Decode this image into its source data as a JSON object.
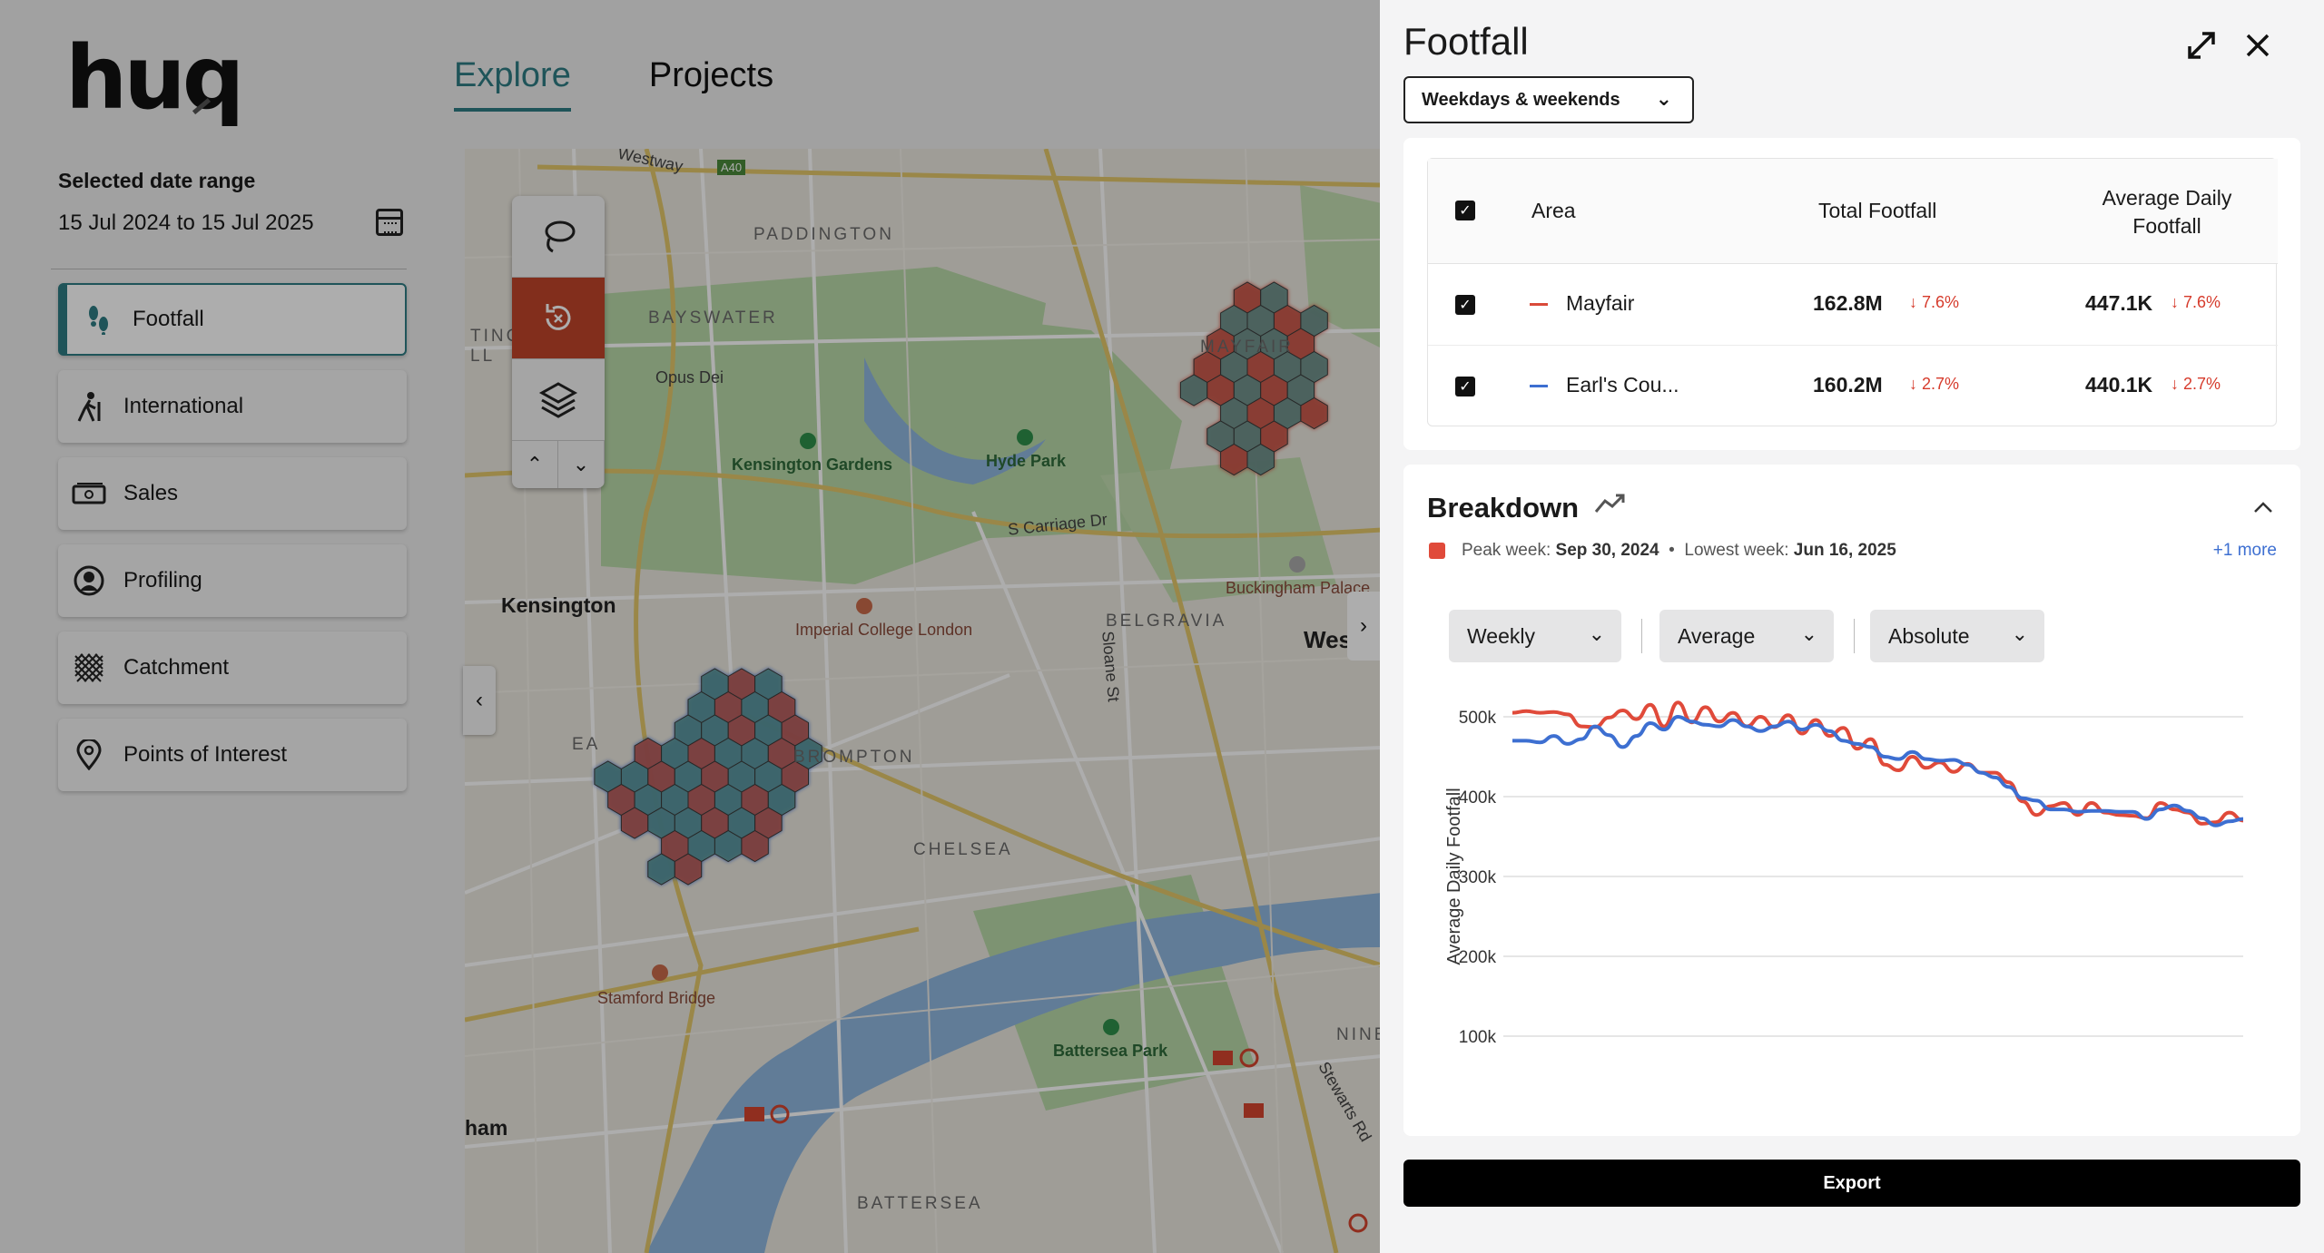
{
  "brand": {
    "logo_text": "huq"
  },
  "nav": {
    "tabs": [
      {
        "label": "Explore"
      },
      {
        "label": "Projects"
      }
    ]
  },
  "sidebar": {
    "date_range_title": "Selected date range",
    "date_range_value": "15 Jul 2024 to 15 Jul 2025",
    "items": [
      {
        "label": "Footfall",
        "icon": "footsteps-icon"
      },
      {
        "label": "International",
        "icon": "walking-person-icon"
      },
      {
        "label": "Sales",
        "icon": "cash-icon"
      },
      {
        "label": "Profiling",
        "icon": "user-circle-icon"
      },
      {
        "label": "Catchment",
        "icon": "hatch-grid-icon"
      },
      {
        "label": "Points of Interest",
        "icon": "map-pin-icon"
      }
    ]
  },
  "map": {
    "labels": {
      "westway": "Westway",
      "a40": "A40",
      "paddington": "PADDINGTON",
      "bayswater": "BAYSWATER",
      "opus_dei": "Opus Dei",
      "kensington_gardens": "Kensington Gardens",
      "hyde_park": "Hyde Park",
      "s_carriage_dr": "S Carriage Dr",
      "kensington": "Kensington",
      "imperial": "Imperial College London",
      "belgravia": "BELGRAVIA",
      "sloane_st": "Sloane St",
      "buckingham": "Buckingham Palace",
      "wes": "Wes",
      "brompton": "BROMPTON",
      "chelsea": "CHELSEA",
      "stamford_bridge": "Stamford Bridge",
      "battersea_park": "Battersea Park",
      "battersea": "BATTERSEA",
      "nine": "NINE",
      "stewarts_rd": "Stewarts Rd",
      "ham": "ham",
      "mayfair_partial": "MAYFAIR",
      "ting": "TING",
      "ll": "LL",
      "ea": "EA"
    },
    "colors": {
      "mayfair_hex": "#d94a3a",
      "earls_court_hex": "#3d6fd1",
      "hex_fill": "#5d9a95"
    },
    "tools": [
      "lasso-icon",
      "reset-icon",
      "layers-icon",
      "chevron-up-icon",
      "chevron-down-icon"
    ]
  },
  "panel": {
    "title": "Footfall",
    "period_select": "Weekdays & weekends",
    "table": {
      "headers": {
        "area": "Area",
        "total": "Total Footfall",
        "average": "Average Daily Footfall"
      },
      "rows": [
        {
          "name": "Mayfair",
          "color": "#d94a3a",
          "total": "162.8M",
          "total_change": "↓ 7.6%",
          "average": "447.1K",
          "average_change": "↓ 7.6%"
        },
        {
          "name": "Earl's Cou...",
          "color": "#3d6fd1",
          "total": "160.2M",
          "total_change": "↓ 2.7%",
          "average": "440.1K",
          "average_change": "↓ 2.7%"
        }
      ]
    },
    "breakdown": {
      "title": "Breakdown",
      "peak_label": "Peak week:",
      "peak_value": "Sep 30, 2024",
      "separator": "•",
      "lowest_label": "Lowest week:",
      "lowest_value": "Jun 16, 2025",
      "more_link": "+1 more",
      "controls": {
        "interval": "Weekly",
        "metric": "Average",
        "mode": "Absolute"
      }
    },
    "export_label": "Export"
  },
  "chart_data": {
    "type": "line",
    "ylabel": "Average Daily Footfall",
    "xlabel": "",
    "yticks": [
      "500k",
      "400k",
      "300k",
      "200k",
      "100k"
    ],
    "ylim": [
      100000,
      500000
    ],
    "grid": true,
    "series": [
      {
        "name": "Mayfair",
        "color": "#e04a3a",
        "values": [
          505000,
          507000,
          505000,
          506000,
          503000,
          488000,
          487000,
          499000,
          508000,
          497000,
          515000,
          488000,
          518000,
          493000,
          512000,
          494000,
          505000,
          488000,
          500000,
          487000,
          502000,
          479000,
          496000,
          476000,
          486000,
          460000,
          472000,
          440000,
          433000,
          450000,
          436000,
          443000,
          431000,
          441000,
          430000,
          430000,
          418000,
          394000,
          377000,
          388000,
          392000,
          377000,
          392000,
          380000,
          377000,
          376000,
          373000,
          392000,
          384000,
          380000,
          366000,
          368000,
          380000,
          370000
        ]
      },
      {
        "name": "Earl's Court",
        "color": "#3d6fd1",
        "values": [
          470000,
          470000,
          468000,
          476000,
          466000,
          472000,
          488000,
          477000,
          462000,
          476000,
          492000,
          484000,
          500000,
          494000,
          490000,
          488000,
          496000,
          488000,
          482000,
          488000,
          494000,
          484000,
          490000,
          482000,
          470000,
          466000,
          462000,
          450000,
          447000,
          456000,
          447000,
          445000,
          446000,
          440000,
          430000,
          424000,
          412000,
          398000,
          395000,
          384000,
          384000,
          381000,
          382000,
          382000,
          381000,
          381000,
          372000,
          384000,
          389000,
          382000,
          373000,
          364000,
          369000,
          372000
        ]
      }
    ]
  }
}
